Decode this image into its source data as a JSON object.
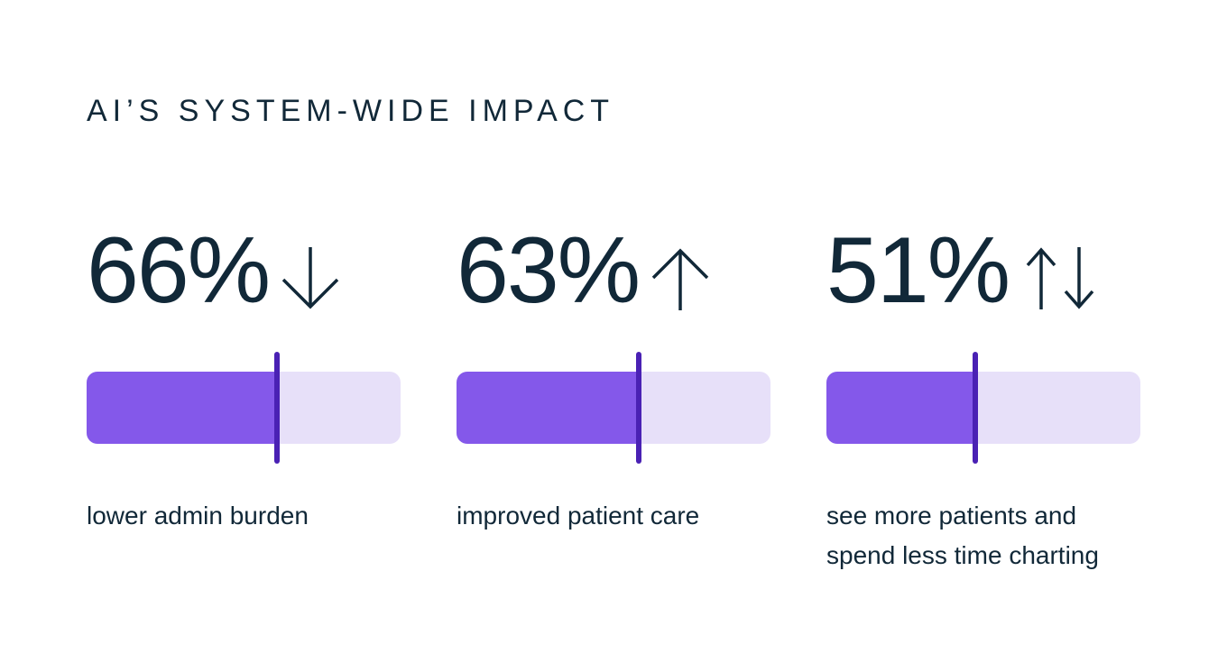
{
  "header": {
    "title": "AI’S SYSTEM-WIDE IMPACT"
  },
  "chart_data": {
    "type": "bar",
    "title": "AI’S SYSTEM-WIDE IMPACT",
    "orientation": "horizontal",
    "items": [
      {
        "value": 66,
        "value_label": "66%",
        "trend_icon": "arrow-down",
        "direction": "down",
        "label": "lower admin burden",
        "fill_percent": 60.6
      },
      {
        "value": 63,
        "value_label": "63%",
        "trend_icon": "arrow-up",
        "direction": "up",
        "label": "improved patient care",
        "fill_percent": 58.0
      },
      {
        "value": 51,
        "value_label": "51%",
        "trend_icon": "arrow-up-down",
        "direction": "up-down",
        "label": "see more patients and spend less time charting",
        "fill_percent": 47.5
      }
    ],
    "axis_range": [
      0,
      100
    ],
    "legend": "none",
    "grid": false,
    "colors": {
      "bar_fill": "#8458EA",
      "bar_track": "#E7E0F9",
      "marker": "#4A21B4",
      "text": "#112838"
    }
  }
}
